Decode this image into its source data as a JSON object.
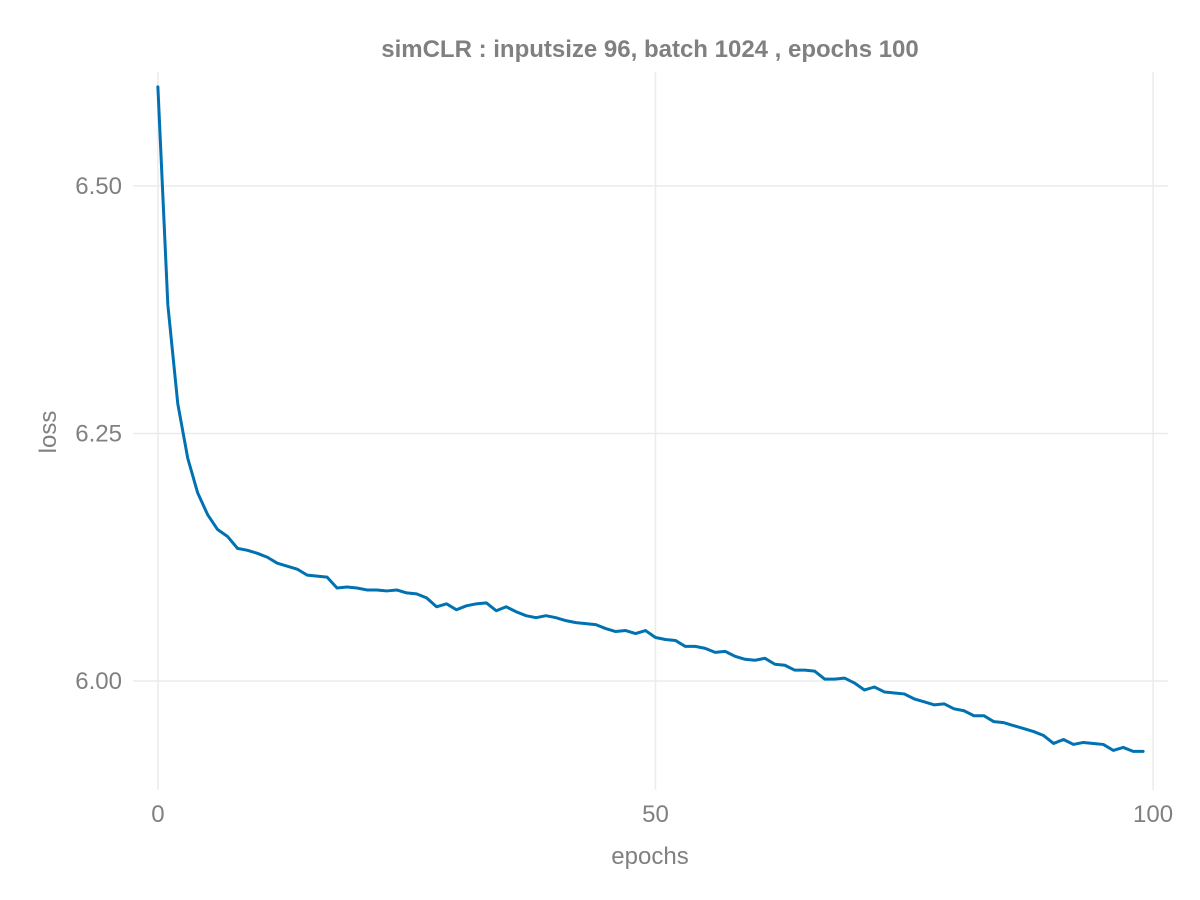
{
  "chart_data": {
    "type": "line",
    "title": "simCLR : inputsize 96, batch 1024 , epochs 100",
    "xlabel": "epochs",
    "ylabel": "loss",
    "xlim": [
      -2.5,
      101.5
    ],
    "ylim": [
      5.89,
      6.615
    ],
    "xticks": [
      0,
      50,
      100
    ],
    "xtick_labels": [
      "0",
      "50",
      "100"
    ],
    "yticks": [
      6.0,
      6.25,
      6.5
    ],
    "ytick_labels": [
      "6.00",
      "6.25",
      "6.50"
    ],
    "grid": true,
    "legend": "none",
    "series": [
      {
        "color": "#0072b2",
        "x": [
          0,
          1,
          2,
          3,
          4,
          5,
          6,
          7,
          8,
          9,
          10,
          11,
          12,
          13,
          14,
          15,
          16,
          17,
          18,
          19,
          20,
          21,
          22,
          23,
          24,
          25,
          26,
          27,
          28,
          29,
          30,
          31,
          32,
          33,
          34,
          35,
          36,
          37,
          38,
          39,
          40,
          41,
          42,
          43,
          44,
          45,
          46,
          47,
          48,
          49,
          50,
          51,
          52,
          53,
          54,
          55,
          56,
          57,
          58,
          59,
          60,
          61,
          62,
          63,
          64,
          65,
          66,
          67,
          68,
          69,
          70,
          71,
          72,
          73,
          74,
          75,
          76,
          77,
          78,
          79,
          80,
          81,
          82,
          83,
          84,
          85,
          86,
          87,
          88,
          89,
          90,
          91,
          92,
          93,
          94,
          95,
          96,
          97,
          98,
          99
        ],
        "y": [
          6.6,
          6.38,
          6.28,
          6.225,
          6.19,
          6.168,
          6.153,
          6.146,
          6.134,
          6.132,
          6.129,
          6.125,
          6.119,
          6.116,
          6.113,
          6.107,
          6.106,
          6.105,
          6.094,
          6.095,
          6.094,
          6.092,
          6.092,
          6.091,
          6.092,
          6.089,
          6.088,
          6.084,
          6.075,
          6.078,
          6.072,
          6.076,
          6.078,
          6.079,
          6.071,
          6.075,
          6.07,
          6.066,
          6.064,
          6.066,
          6.064,
          6.061,
          6.059,
          6.058,
          6.057,
          6.053,
          6.05,
          6.051,
          6.048,
          6.051,
          6.044,
          6.042,
          6.041,
          6.035,
          6.035,
          6.033,
          6.029,
          6.03,
          6.025,
          6.022,
          6.021,
          6.023,
          6.017,
          6.016,
          6.011,
          6.011,
          6.01,
          6.002,
          6.002,
          6.003,
          5.998,
          5.991,
          5.994,
          5.989,
          5.988,
          5.987,
          5.982,
          5.979,
          5.976,
          5.977,
          5.972,
          5.97,
          5.965,
          5.965,
          5.959,
          5.958,
          5.955,
          5.952,
          5.949,
          5.945,
          5.937,
          5.941,
          5.936,
          5.938,
          5.937,
          5.936,
          5.93,
          5.933,
          5.929,
          5.929
        ]
      }
    ]
  }
}
